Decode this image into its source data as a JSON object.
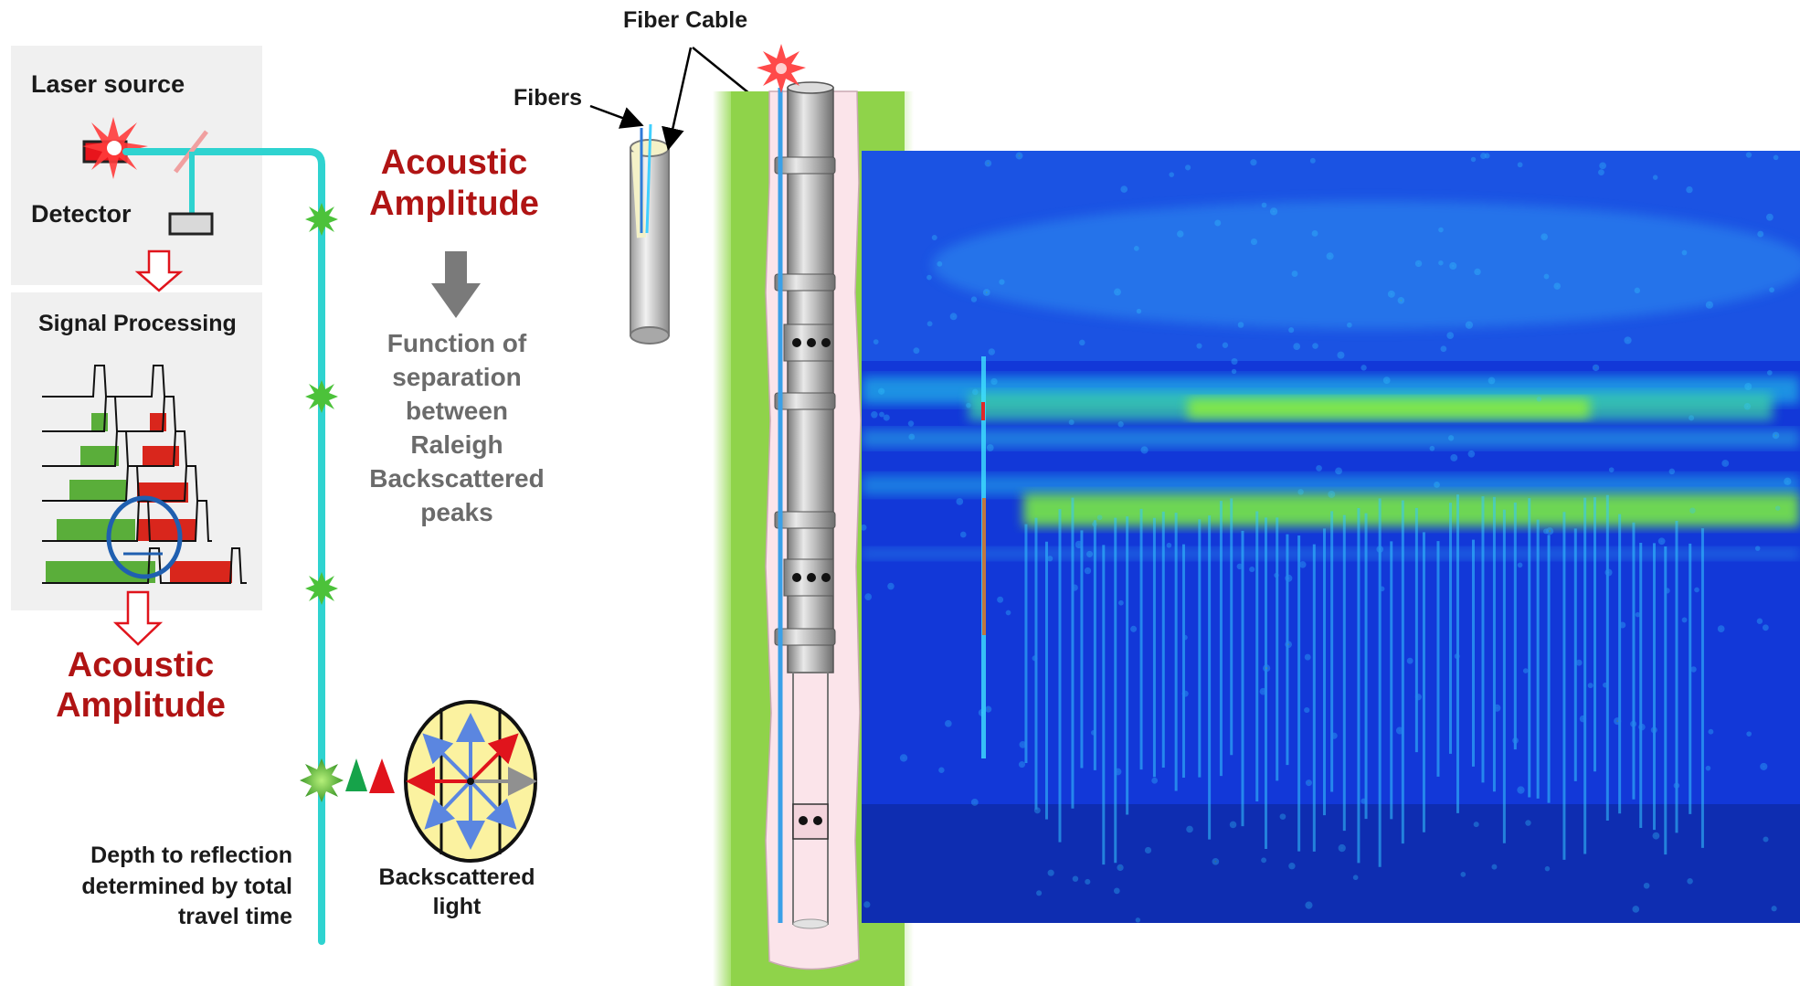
{
  "labels": {
    "laser_source": "Laser source",
    "detector": "Detector",
    "signal_processing": "Signal Processing",
    "acoustic_amplitude_left": [
      "Acoustic",
      "Amplitude"
    ],
    "depth_note": [
      "Depth to reflection",
      "determined by total",
      "travel time"
    ],
    "acoustic_amplitude_center": [
      "Acoustic",
      "Amplitude"
    ],
    "function_note": [
      "Function of",
      "separation",
      "between",
      "Raleigh",
      "Backscattered",
      "peaks"
    ],
    "backscattered_light": [
      "Backscattered",
      "light"
    ],
    "fiber_cable": "Fiber Cable",
    "fibers": "Fibers"
  },
  "colors": {
    "fiber_line": "#2fd3d0",
    "laser": "#e8141c",
    "label_red": "#b01414",
    "green_pulse": "#5aae3a",
    "red_pulse": "#d9261c",
    "circle_blue": "#1f5fb0",
    "formation_green": "#8fd34a",
    "borehole_pink": "#fbe4ea",
    "das_background": "#1238d8",
    "das_band": "#7ef23c"
  },
  "icons": [
    "laser-star-icon",
    "down-arrow-icon",
    "splice-star-icon",
    "backscatter-circle-icon"
  ]
}
